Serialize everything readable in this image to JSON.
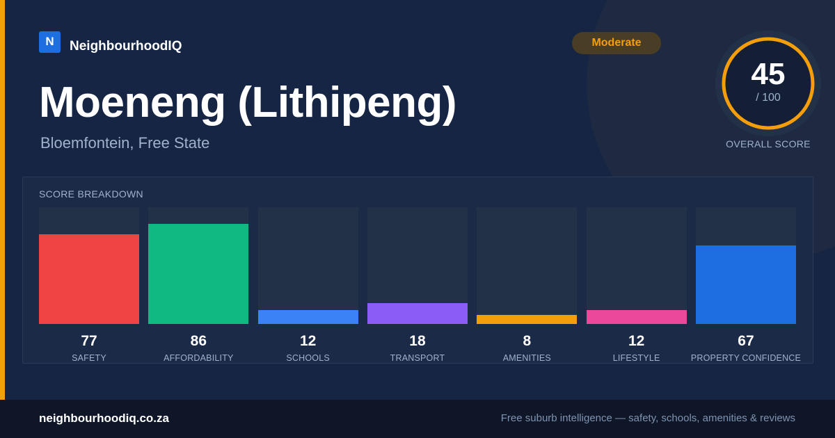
{
  "brand": {
    "logo_letter": "N",
    "name": "NeighbourhoodIQ"
  },
  "badge": {
    "label": "Moderate",
    "color": "#f59e0b"
  },
  "location": {
    "title": "Moeneng (Lithipeng)",
    "subtitle": "Bloemfontein, Free State"
  },
  "overall": {
    "score": "45",
    "max_label": "/ 100",
    "label": "OVERALL SCORE",
    "score_value": 45,
    "score_max": 100,
    "ring_color": "#f59e0b"
  },
  "breakdown": {
    "title": "SCORE BREAKDOWN",
    "items": [
      {
        "label": "SAFETY",
        "value": "77",
        "score": 77,
        "color": "#ef4444"
      },
      {
        "label": "AFFORDABILITY",
        "value": "86",
        "score": 86,
        "color": "#10b981"
      },
      {
        "label": "SCHOOLS",
        "value": "12",
        "score": 12,
        "color": "#3b82f6"
      },
      {
        "label": "TRANSPORT",
        "value": "18",
        "score": 18,
        "color": "#8b5cf6"
      },
      {
        "label": "AMENITIES",
        "value": "8",
        "score": 8,
        "color": "#f59e0b"
      },
      {
        "label": "LIFESTYLE",
        "value": "12",
        "score": 12,
        "color": "#ec4899"
      },
      {
        "label": "PROPERTY CONFIDENCE",
        "value": "67",
        "score": 67,
        "color": "#1d6ee0"
      }
    ]
  },
  "footer": {
    "domain": "neighbourhoodiq.co.za",
    "tagline": "Free suburb intelligence — safety, schools, amenities & reviews"
  }
}
